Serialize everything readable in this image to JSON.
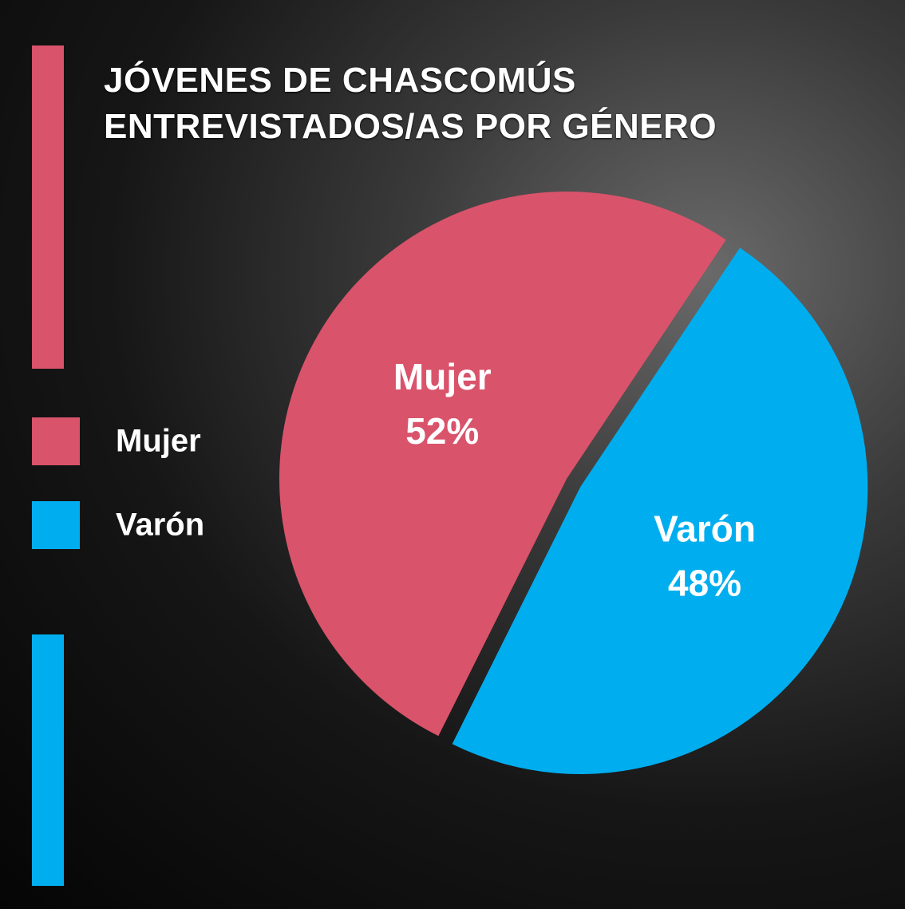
{
  "chart_data": {
    "type": "pie",
    "title": "JÓVENES DE CHASCOMÚS ENTREVISTADOS/AS POR GÉNERO",
    "categories": [
      "Mujer",
      "Varón"
    ],
    "values": [
      52,
      48
    ],
    "value_labels": [
      "52%",
      "48%"
    ],
    "colors": [
      "#d9536b",
      "#00aeef"
    ],
    "legend": "left"
  }
}
